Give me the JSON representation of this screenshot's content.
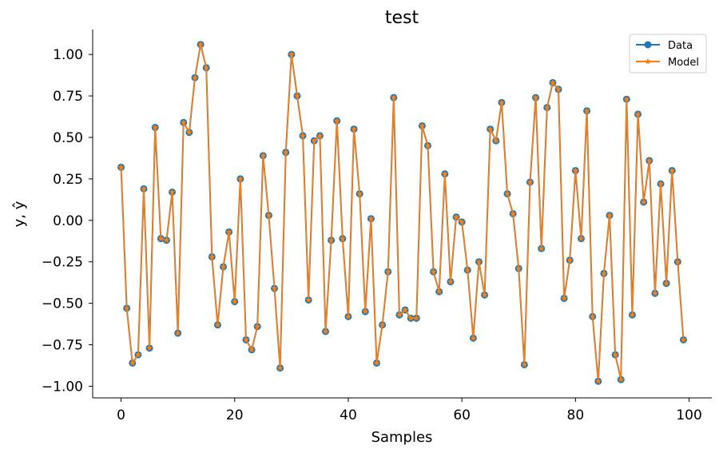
{
  "chart_data": {
    "type": "line",
    "title": "test",
    "xlabel": "Samples",
    "ylabel": "y, ŷ",
    "xlim": [
      -5,
      104
    ],
    "ylim": [
      -1.07,
      1.15
    ],
    "xticks": [
      0,
      20,
      40,
      60,
      80,
      100
    ],
    "yticks": [
      -1.0,
      -0.75,
      -0.5,
      -0.25,
      0.0,
      0.25,
      0.5,
      0.75,
      1.0
    ],
    "grid": false,
    "legend_position": "top-right",
    "x": [
      0,
      1,
      2,
      3,
      4,
      5,
      6,
      7,
      8,
      9,
      10,
      11,
      12,
      13,
      14,
      15,
      16,
      17,
      18,
      19,
      20,
      21,
      22,
      23,
      24,
      25,
      26,
      27,
      28,
      29,
      30,
      31,
      32,
      33,
      34,
      35,
      36,
      37,
      38,
      39,
      40,
      41,
      42,
      43,
      44,
      45,
      46,
      47,
      48,
      49,
      50,
      51,
      52,
      53,
      54,
      55,
      56,
      57,
      58,
      59,
      60,
      61,
      62,
      63,
      64,
      65,
      66,
      67,
      68,
      69,
      70,
      71,
      72,
      73,
      74,
      75,
      76,
      77,
      78,
      79,
      80,
      81,
      82,
      83,
      84,
      85,
      86,
      87,
      88,
      89,
      90,
      91,
      92,
      93,
      94,
      95,
      96,
      97,
      98,
      99
    ],
    "series": [
      {
        "name": "Data",
        "color": "#1f77b4",
        "marker": "circle",
        "values": [
          0.32,
          -0.53,
          -0.86,
          -0.81,
          0.19,
          -0.77,
          0.56,
          -0.11,
          -0.12,
          0.17,
          -0.68,
          0.59,
          0.53,
          0.86,
          1.06,
          0.92,
          -0.22,
          -0.63,
          -0.28,
          -0.07,
          -0.49,
          0.25,
          -0.72,
          -0.78,
          -0.64,
          0.39,
          0.03,
          -0.41,
          -0.89,
          0.41,
          1.0,
          0.75,
          0.51,
          -0.48,
          0.48,
          0.51,
          -0.67,
          -0.12,
          0.6,
          -0.11,
          -0.58,
          0.55,
          0.16,
          -0.55,
          0.01,
          -0.86,
          -0.63,
          -0.31,
          0.74,
          -0.57,
          -0.54,
          -0.59,
          -0.59,
          0.57,
          0.45,
          -0.31,
          -0.43,
          0.28,
          -0.37,
          0.02,
          -0.01,
          -0.3,
          -0.71,
          -0.25,
          -0.45,
          0.55,
          0.48,
          0.71,
          0.16,
          0.04,
          -0.29,
          -0.87,
          0.23,
          0.74,
          -0.17,
          0.68,
          0.83,
          0.79,
          -0.47,
          -0.24,
          0.3,
          -0.11,
          0.66,
          -0.58,
          -0.97,
          -0.32,
          0.03,
          -0.81,
          -0.96,
          0.73,
          -0.57,
          0.64,
          0.11,
          0.36,
          -0.44,
          0.22,
          -0.38,
          0.3,
          -0.25,
          -0.72
        ]
      },
      {
        "name": "Model",
        "color": "#ff7f0e",
        "marker": "star",
        "values": [
          0.32,
          -0.53,
          -0.86,
          -0.81,
          0.19,
          -0.77,
          0.56,
          -0.11,
          -0.12,
          0.17,
          -0.68,
          0.59,
          0.53,
          0.86,
          1.06,
          0.92,
          -0.22,
          -0.63,
          -0.28,
          -0.07,
          -0.49,
          0.25,
          -0.72,
          -0.78,
          -0.64,
          0.39,
          0.03,
          -0.41,
          -0.89,
          0.41,
          1.0,
          0.75,
          0.51,
          -0.48,
          0.48,
          0.51,
          -0.67,
          -0.12,
          0.6,
          -0.11,
          -0.58,
          0.55,
          0.16,
          -0.55,
          0.01,
          -0.86,
          -0.63,
          -0.31,
          0.74,
          -0.57,
          -0.54,
          -0.59,
          -0.59,
          0.57,
          0.45,
          -0.31,
          -0.43,
          0.28,
          -0.37,
          0.02,
          -0.01,
          -0.3,
          -0.71,
          -0.25,
          -0.45,
          0.55,
          0.48,
          0.71,
          0.16,
          0.04,
          -0.29,
          -0.87,
          0.23,
          0.74,
          -0.17,
          0.68,
          0.83,
          0.79,
          -0.47,
          -0.24,
          0.3,
          -0.11,
          0.66,
          -0.58,
          -0.97,
          -0.32,
          0.03,
          -0.81,
          -0.96,
          0.73,
          -0.57,
          0.64,
          0.11,
          0.36,
          -0.44,
          0.22,
          -0.38,
          0.3,
          -0.25,
          -0.72
        ]
      }
    ]
  },
  "axis_color": "#000000",
  "legend_border_color": "#cccccc"
}
